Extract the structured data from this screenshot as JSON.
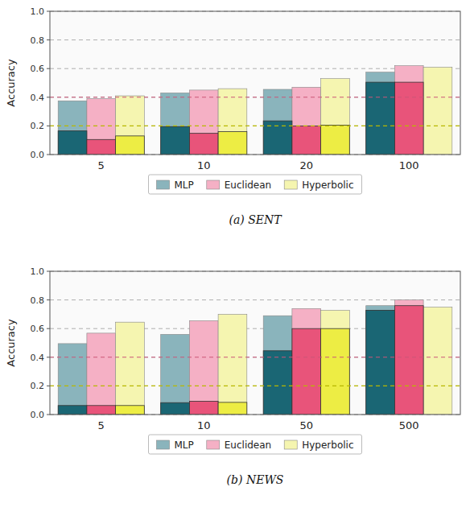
{
  "chart_data": [
    {
      "type": "bar",
      "title": "(a) SENT",
      "categories": [
        "5",
        "10",
        "20",
        "100"
      ],
      "series": [
        {
          "name": "MLP",
          "color": "#8ab4bc",
          "values": [
            0.375,
            0.43,
            0.455,
            0.575
          ]
        },
        {
          "color": "#1a6674",
          "values": [
            0.165,
            0.195,
            0.235,
            0.505
          ]
        },
        {
          "name": "Euclidean",
          "color": "#f5b0c5",
          "values": [
            0.39,
            0.45,
            0.47,
            0.62
          ]
        },
        {
          "color": "#e8547a",
          "values": [
            0.105,
            0.148,
            0.2,
            0.505
          ]
        },
        {
          "name": "Hyperbolic",
          "color": "#f5f5b0",
          "values": [
            0.41,
            0.46,
            0.53,
            0.61
          ]
        },
        {
          "color": "#eded44",
          "values": [
            0.13,
            0.16,
            0.205,
            0.0
          ]
        }
      ],
      "y_label": "Accuracy",
      "ylim": [
        0.0,
        1.0
      ],
      "yticks": [
        {
          "value": 0.0,
          "label": "0.0"
        },
        0.2,
        0.4,
        0.6,
        0.8,
        {
          "value": 1.0,
          "label": "1.0"
        }
      ],
      "reference_lines": [
        {
          "value": 0.2,
          "color": "#b8b800"
        },
        {
          "value": 0.4,
          "color": "#cc5577"
        }
      ],
      "grid": true,
      "legend": "bottom"
    },
    {
      "type": "bar",
      "title": "(b) NEWS",
      "categories": [
        "5",
        "10",
        "50",
        "500"
      ],
      "series": [
        {
          "name": "MLP",
          "color": "#8ab4bc",
          "values": [
            0.495,
            0.56,
            0.69,
            0.76
          ]
        },
        {
          "color": "#1a6674",
          "values": [
            0.063,
            0.083,
            0.445,
            0.728
          ]
        },
        {
          "name": "Euclidean",
          "color": "#f5b0c5",
          "values": [
            0.568,
            0.655,
            0.74,
            0.8
          ]
        },
        {
          "color": "#e8547a",
          "values": [
            0.063,
            0.093,
            0.6,
            0.76
          ]
        },
        {
          "name": "Hyperbolic",
          "color": "#f5f5b0",
          "values": [
            0.645,
            0.7,
            0.728,
            0.75
          ]
        },
        {
          "color": "#eded44",
          "values": [
            0.063,
            0.085,
            0.6,
            0.0
          ]
        }
      ],
      "y_label": "Accuracy",
      "ylim": [
        0.0,
        1.0
      ],
      "yticks": [
        {
          "value": 0.0,
          "label": "0.0"
        },
        0.2,
        0.4,
        0.6,
        0.8,
        {
          "value": 1.0,
          "label": "1.0"
        }
      ],
      "reference_lines": [
        {
          "value": 0.2,
          "color": "#b8b800"
        },
        {
          "value": 0.4,
          "color": "#cc5577"
        }
      ],
      "grid": true,
      "legend": "bottom"
    }
  ]
}
